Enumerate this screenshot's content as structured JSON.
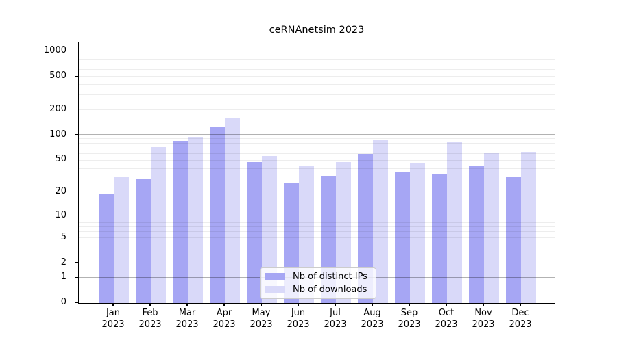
{
  "title": "ceRNAnetsim 2023",
  "chart_data": {
    "type": "bar",
    "title": "ceRNAnetsim 2023",
    "categories": [
      "Jan 2023",
      "Feb 2023",
      "Mar 2023",
      "Apr 2023",
      "May 2023",
      "Jun 2023",
      "Jul 2023",
      "Aug 2023",
      "Sep 2023",
      "Oct 2023",
      "Nov 2023",
      "Dec 2023"
    ],
    "series": [
      {
        "name": "Nb of distinct IPs",
        "color": "#a6a6f4",
        "values": [
          19,
          29,
          85,
          127,
          47,
          26,
          32,
          59,
          36,
          33,
          43,
          31
        ]
      },
      {
        "name": "Nb of downloads",
        "color": "#d9d9f9",
        "values": [
          31,
          72,
          94,
          158,
          56,
          42,
          47,
          88,
          45,
          84,
          61,
          62
        ]
      }
    ],
    "y_ticks": [
      0,
      1,
      2,
      5,
      10,
      20,
      50,
      100,
      200,
      500,
      1000
    ],
    "y_scale": "log10(value+1)",
    "ylim": [
      0,
      1285
    ],
    "xlabel": "",
    "ylabel": "",
    "grid": "horizontal log major+minor",
    "legend_position": "lower center"
  },
  "colors": {
    "bar_dark": "#a6a6f4",
    "bar_light": "#d9d9f9",
    "grid_major": "rgba(0,0,0,0.30)",
    "grid_minor": "rgba(0,0,0,0.07)",
    "axis": "#000000",
    "legend_border": "#cccccc"
  }
}
